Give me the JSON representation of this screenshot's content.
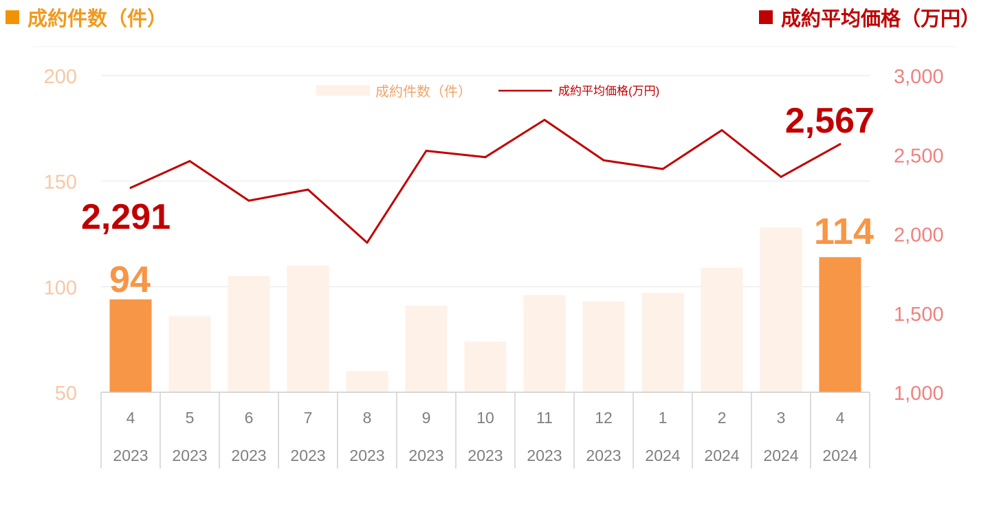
{
  "header": {
    "left_title": "成約件数（件）",
    "right_title": "成約平均価格（万円）",
    "left_color": "#f39200",
    "right_color": "#c00000"
  },
  "chart_data": {
    "type": "bar+line",
    "categories": [
      {
        "month": "4",
        "year": "2023"
      },
      {
        "month": "5",
        "year": "2023"
      },
      {
        "month": "6",
        "year": "2023"
      },
      {
        "month": "7",
        "year": "2023"
      },
      {
        "month": "8",
        "year": "2023"
      },
      {
        "month": "9",
        "year": "2023"
      },
      {
        "month": "10",
        "year": "2023"
      },
      {
        "month": "11",
        "year": "2023"
      },
      {
        "month": "12",
        "year": "2023"
      },
      {
        "month": "1",
        "year": "2024"
      },
      {
        "month": "2",
        "year": "2024"
      },
      {
        "month": "3",
        "year": "2024"
      },
      {
        "month": "4",
        "year": "2024"
      }
    ],
    "series": [
      {
        "name": "成約件数（件）",
        "type": "bar",
        "axis": "left",
        "values": [
          94,
          86,
          105,
          110,
          60,
          91,
          74,
          96,
          93,
          97,
          109,
          128,
          114
        ],
        "highlight_indices": [
          0,
          12
        ],
        "color": "#fdf1e8",
        "highlight_color": "#f79646"
      },
      {
        "name": "成約平均価格(万円)",
        "type": "line",
        "axis": "right",
        "values": [
          2291,
          2460,
          2210,
          2280,
          1945,
          2525,
          2485,
          2720,
          2465,
          2410,
          2655,
          2360,
          2567
        ],
        "color": "#c00000"
      }
    ],
    "left_axis": {
      "ticks": [
        "200",
        "150",
        "100",
        "50"
      ],
      "ylim": [
        50,
        200
      ],
      "color": "#f8c7a3"
    },
    "right_axis": {
      "ticks": [
        "3,000",
        "2,500",
        "2,000",
        "1,500",
        "1,000"
      ],
      "ylim": [
        1000,
        3000
      ],
      "color": "#f08080"
    },
    "annotations": [
      {
        "series": 1,
        "index": 0,
        "text": "2,291",
        "color": "#c00000"
      },
      {
        "series": 1,
        "index": 12,
        "text": "2,567",
        "color": "#c00000"
      },
      {
        "series": 0,
        "index": 0,
        "text": "94",
        "color": "#f79646"
      },
      {
        "series": 0,
        "index": 12,
        "text": "114",
        "color": "#f79646"
      }
    ],
    "legend": {
      "placement": "top-center"
    },
    "grid": true
  }
}
